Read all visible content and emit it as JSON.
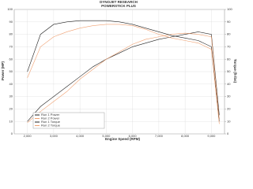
{
  "chart_data": {
    "type": "line",
    "title": "DYNOJET RESEARCH",
    "subtitle": "POWERSTICK PLUS",
    "x_label": "Engine Speed (RPM)",
    "y_label": "Power (HP)",
    "y2_label": "Torque (ft-lbs)",
    "x": [
      2000,
      2500,
      3000,
      3500,
      4000,
      4500,
      5000,
      5500,
      6000,
      6500,
      7000,
      7500,
      8000,
      8500,
      9000,
      9300
    ],
    "xlim": [
      1500,
      9500
    ],
    "xticks": [
      {
        "value": 2000,
        "label": "2,000"
      },
      {
        "value": 3000,
        "label": "3,000"
      },
      {
        "value": 4000,
        "label": "4,000"
      },
      {
        "value": 5000,
        "label": "5,000"
      },
      {
        "value": 6000,
        "label": "6,000"
      },
      {
        "value": 7000,
        "label": "7,000"
      },
      {
        "value": 8000,
        "label": "8,000"
      },
      {
        "value": 9000,
        "label": "9,000"
      }
    ],
    "ylim": [
      0,
      100
    ],
    "yticks": [
      0,
      10,
      20,
      30,
      40,
      50,
      60,
      70,
      80,
      90,
      100
    ],
    "y2lim": [
      0,
      100
    ],
    "y2ticks": [
      0,
      10,
      20,
      30,
      40,
      50,
      60,
      70,
      80,
      90,
      100
    ],
    "grid": true,
    "legend": "lower left",
    "series": [
      {
        "name": "Run 1 Power",
        "color": "#222222",
        "values": [
          10,
          22,
          30,
          38,
          46,
          54,
          60,
          65,
          70,
          73,
          76,
          78,
          80,
          82,
          80,
          15
        ]
      },
      {
        "name": "Run 2 Power",
        "color": "#f0a070",
        "values": [
          9,
          18,
          26,
          34,
          44,
          52,
          60,
          66,
          72,
          76,
          78,
          80,
          81,
          80,
          78,
          12
        ]
      },
      {
        "name": "Run 1 Torque",
        "color": "#222222",
        "axis": "y2",
        "values": [
          50,
          80,
          88,
          90,
          91,
          91,
          91,
          90,
          88,
          85,
          82,
          79,
          77,
          75,
          70,
          10
        ]
      },
      {
        "name": "Run 2 Torque",
        "color": "#f0a070",
        "axis": "y2",
        "values": [
          45,
          70,
          78,
          82,
          85,
          87,
          88,
          88,
          87,
          84,
          80,
          77,
          75,
          73,
          68,
          8
        ]
      }
    ]
  }
}
